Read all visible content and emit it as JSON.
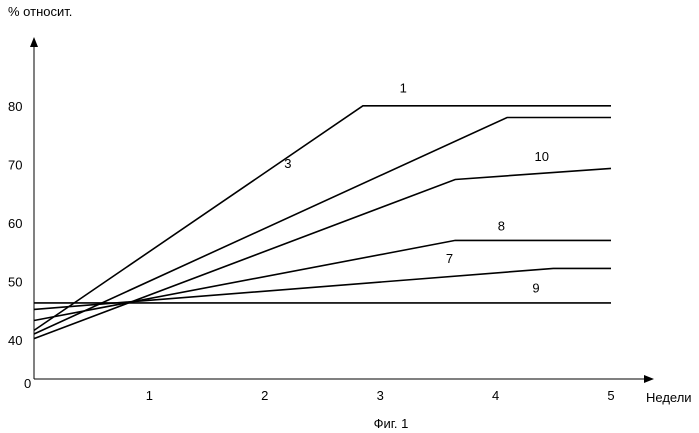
{
  "chart_data": {
    "type": "line",
    "title": "",
    "caption": "Фиг. 1",
    "xlabel": "Недели",
    "ylabel": "% относит.",
    "origin_label": "0",
    "x_ticks": [
      "1",
      "2",
      "3",
      "4",
      "5"
    ],
    "y_ticks": [
      "40",
      "50",
      "60",
      "70",
      "80"
    ],
    "xlim": [
      0,
      5.3
    ],
    "ylim": [
      33.5,
      89.5
    ],
    "grid": false,
    "legend": "none",
    "line_color": "#000000",
    "series": [
      {
        "label": "1",
        "points": [
          [
            0,
            41.8
          ],
          [
            2.85,
            80.2
          ],
          [
            5,
            80.2
          ]
        ],
        "label_at": [
          3.2,
          82.5
        ]
      },
      {
        "label": "3",
        "points": [
          [
            0,
            41.2
          ],
          [
            4.1,
            78.2
          ],
          [
            5,
            78.2
          ]
        ],
        "label_at": [
          2.2,
          69.6
        ]
      },
      {
        "label": "10",
        "points": [
          [
            0,
            40.4
          ],
          [
            3.65,
            67.6
          ],
          [
            5,
            69.5
          ]
        ],
        "label_at": [
          4.4,
          70.8
        ]
      },
      {
        "label": "8",
        "points": [
          [
            0,
            43.5
          ],
          [
            3.65,
            57.2
          ],
          [
            5,
            57.2
          ]
        ],
        "label_at": [
          4.05,
          58.9
        ]
      },
      {
        "label": "7",
        "points": [
          [
            0,
            45.4
          ],
          [
            4.5,
            52.4
          ],
          [
            5,
            52.4
          ]
        ],
        "label_at": [
          3.6,
          53.3
        ]
      },
      {
        "label": "9",
        "points": [
          [
            0,
            46.5
          ],
          [
            5,
            46.5
          ]
        ],
        "label_at": [
          4.35,
          48.3
        ]
      }
    ]
  }
}
